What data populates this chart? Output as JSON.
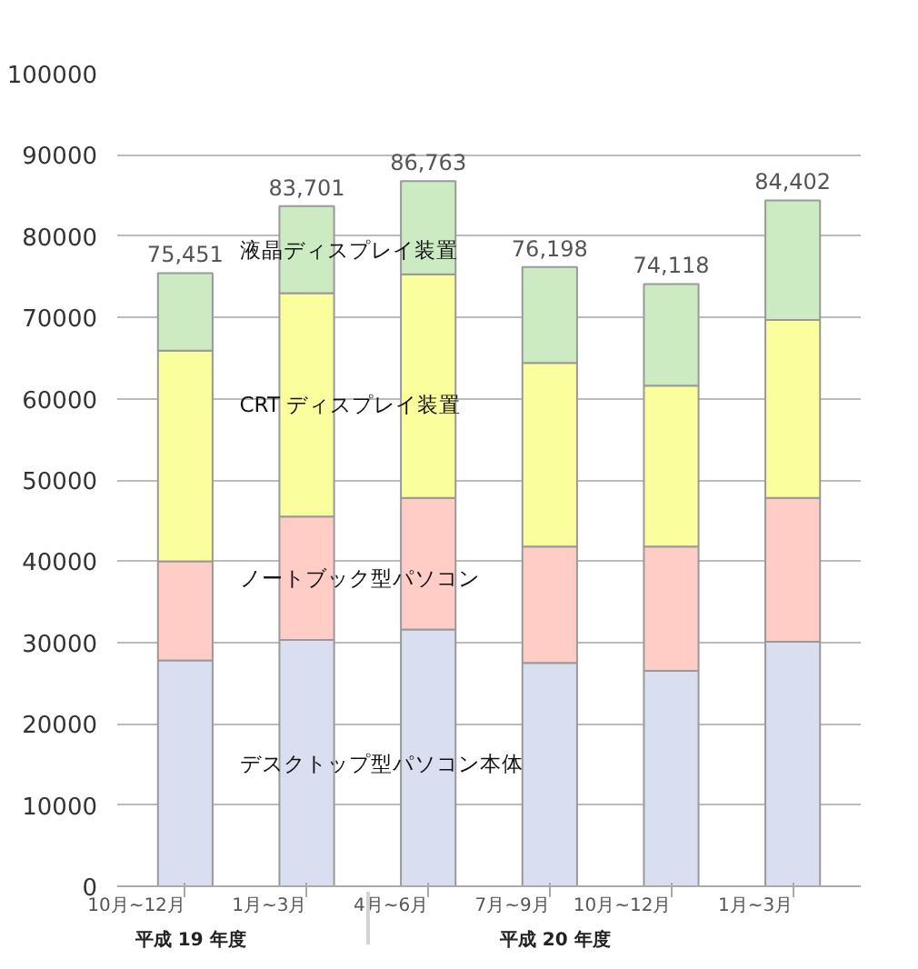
{
  "chart_data": {
    "type": "bar",
    "stacked": true,
    "categories": [
      "10月~12月",
      "1月~3月",
      "4月~6月",
      "7月~9月",
      "10月~12月",
      "1月~3月"
    ],
    "series": [
      {
        "name": "デスクトップ型パソコン本体",
        "color": "#d9dff0",
        "values": [
          27800,
          30300,
          31600,
          27500,
          26500,
          30100
        ]
      },
      {
        "name": "ノートブック型パソコン",
        "color": "#ffcdc6",
        "values": [
          12200,
          15200,
          16200,
          14300,
          15300,
          17700
        ]
      },
      {
        "name": "CRT ディスプレイ装置",
        "color": "#fafe9c",
        "values": [
          25900,
          27500,
          27500,
          22600,
          19800,
          21900
        ]
      },
      {
        "name": "液晶ディスプレイ装置",
        "color": "#cdebc3",
        "values": [
          9551,
          10701,
          11463,
          11798,
          12518,
          14702
        ]
      }
    ],
    "totals": [
      "75,451",
      "83,701",
      "86,763",
      "76,198",
      "74,118",
      "84,402"
    ],
    "annotations": [
      "平成 19 年度",
      "平成 20 年度"
    ],
    "ylim": [
      0,
      100000
    ],
    "yticks": [
      0,
      10000,
      20000,
      30000,
      40000,
      50000,
      60000,
      70000,
      80000,
      90000,
      100000
    ],
    "grid": "y"
  }
}
